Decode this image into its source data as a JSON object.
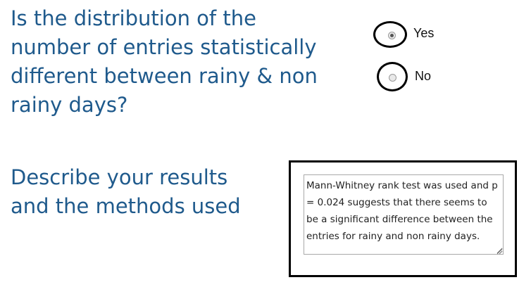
{
  "question": {
    "text": "Is the distribution of the number of entries statistically different between rainy & non rainy days?"
  },
  "options": [
    {
      "label": "Yes",
      "selected": true
    },
    {
      "label": "No",
      "selected": false
    }
  ],
  "describe": {
    "prompt": "Describe your results and the methods used",
    "answer": "Mann-Whitney rank test was used and p = 0.024 suggests that there seems to be a significant difference between the entries for rainy and non rainy days."
  },
  "colors": {
    "heading": "#1f5a8c",
    "highlight": "#000000"
  },
  "icons": {
    "resize": "resize-grip-icon",
    "radio": "radio-button-icon"
  }
}
